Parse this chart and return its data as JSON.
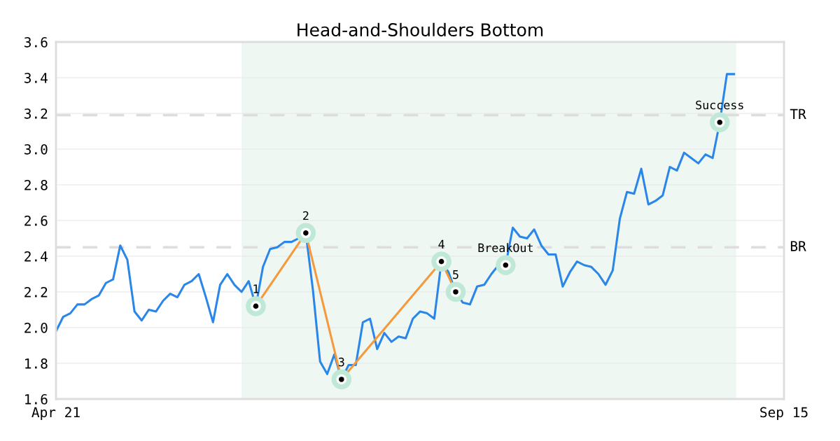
{
  "chart_data": {
    "type": "line",
    "title": "Head-and-Shoulders Bottom",
    "categories": [
      "Apr 21",
      null,
      null,
      null,
      null,
      null,
      null,
      null,
      null,
      null,
      null,
      null,
      null,
      null,
      null,
      null,
      null,
      null,
      null,
      null,
      null,
      null,
      null,
      null,
      null,
      null,
      null,
      null,
      null,
      null,
      null,
      null,
      null,
      null,
      null,
      null,
      null,
      null,
      null,
      null,
      null,
      null,
      null,
      null,
      null,
      null,
      null,
      null,
      null,
      null,
      null,
      null,
      null,
      null,
      null,
      null,
      null,
      null,
      null,
      null,
      null,
      null,
      null,
      null,
      null,
      null,
      null,
      null,
      null,
      null,
      null,
      null,
      null,
      null,
      null,
      null,
      null,
      null,
      null,
      null,
      null,
      null,
      null,
      null,
      null,
      null,
      null,
      null,
      null,
      null,
      null,
      null,
      null,
      null,
      null,
      null,
      null,
      null,
      null,
      null,
      null,
      null,
      "Sep 15"
    ],
    "series": [
      {
        "color": "#2a86e8",
        "values": [
          1.98,
          2.06,
          2.08,
          2.13,
          2.13,
          2.16,
          2.18,
          2.25,
          2.27,
          2.46,
          2.38,
          2.09,
          2.04,
          2.1,
          2.09,
          2.15,
          2.19,
          2.17,
          2.24,
          2.26,
          2.3,
          2.17,
          2.03,
          2.24,
          2.3,
          2.24,
          2.2,
          2.26,
          2.12,
          2.34,
          2.44,
          2.45,
          2.48,
          2.48,
          2.5,
          2.53,
          2.21,
          1.81,
          1.74,
          1.85,
          1.71,
          1.79,
          1.79,
          2.03,
          2.05,
          1.88,
          1.97,
          1.92,
          1.95,
          1.94,
          2.05,
          2.09,
          2.08,
          2.05,
          2.37,
          2.31,
          2.2,
          2.14,
          2.13,
          2.23,
          2.24,
          2.3,
          2.35,
          2.35,
          2.56,
          2.51,
          2.5,
          2.55,
          2.46,
          2.41,
          2.41,
          2.23,
          2.31,
          2.37,
          2.35,
          2.34,
          2.3,
          2.24,
          2.32,
          2.61,
          2.76,
          2.75,
          2.89,
          2.69,
          2.71,
          2.74,
          2.9,
          2.88,
          2.98,
          2.95,
          2.92,
          2.97,
          2.95,
          3.15,
          3.42,
          3.42,
          null,
          null,
          null,
          null,
          null,
          null,
          null
        ]
      },
      {
        "type": "line",
        "color": "#f5993d",
        "marker": "circle",
        "values": [
          null,
          null,
          null,
          null,
          null,
          null,
          null,
          null,
          null,
          null,
          null,
          null,
          null,
          null,
          null,
          null,
          null,
          null,
          null,
          null,
          null,
          null,
          null,
          null,
          null,
          null,
          null,
          null,
          2.12,
          null,
          null,
          null,
          null,
          null,
          null,
          2.53,
          null,
          null,
          null,
          null,
          1.71,
          null,
          null,
          null,
          null,
          null,
          null,
          null,
          null,
          null,
          null,
          null,
          null,
          null,
          2.37,
          null,
          2.2,
          null,
          null,
          null,
          null,
          null,
          null,
          null,
          null,
          null,
          null,
          null,
          null,
          null,
          null,
          null,
          null,
          null,
          null,
          null,
          null,
          null,
          null,
          null,
          null,
          null,
          null,
          null,
          null,
          null,
          null,
          null,
          null,
          null,
          null,
          null,
          null,
          null,
          null,
          null,
          null,
          null,
          null,
          null,
          null,
          null,
          null
        ]
      },
      {
        "type": "scatter",
        "name": "1",
        "color": "#000000",
        "values": [
          null,
          null,
          null,
          null,
          null,
          null,
          null,
          null,
          null,
          null,
          null,
          null,
          null,
          null,
          null,
          null,
          null,
          null,
          null,
          null,
          null,
          null,
          null,
          null,
          null,
          null,
          null,
          null,
          2.12,
          null,
          null,
          null,
          null,
          null,
          null,
          null,
          null,
          null,
          null,
          null,
          null,
          null,
          null,
          null,
          null,
          null,
          null,
          null,
          null,
          null,
          null,
          null,
          null,
          null,
          null,
          null,
          null,
          null,
          null,
          null,
          null,
          null,
          null,
          null,
          null,
          null,
          null,
          null,
          null,
          null,
          null,
          null,
          null,
          null,
          null,
          null,
          null,
          null,
          null,
          null,
          null,
          null,
          null,
          null,
          null,
          null,
          null,
          null,
          null,
          null,
          null,
          null,
          null,
          null,
          null,
          null,
          null,
          null,
          null,
          null,
          null,
          null,
          null
        ]
      },
      {
        "type": "scatter",
        "name": "2",
        "color": "#000000",
        "values": [
          null,
          null,
          null,
          null,
          null,
          null,
          null,
          null,
          null,
          null,
          null,
          null,
          null,
          null,
          null,
          null,
          null,
          null,
          null,
          null,
          null,
          null,
          null,
          null,
          null,
          null,
          null,
          null,
          null,
          null,
          null,
          null,
          null,
          null,
          null,
          2.53,
          null,
          null,
          null,
          null,
          null,
          null,
          null,
          null,
          null,
          null,
          null,
          null,
          null,
          null,
          null,
          null,
          null,
          null,
          null,
          null,
          null,
          null,
          null,
          null,
          null,
          null,
          null,
          null,
          null,
          null,
          null,
          null,
          null,
          null,
          null,
          null,
          null,
          null,
          null,
          null,
          null,
          null,
          null,
          null,
          null,
          null,
          null,
          null,
          null,
          null,
          null,
          null,
          null,
          null,
          null,
          null,
          null,
          null,
          null,
          null,
          null,
          null,
          null,
          null,
          null,
          null,
          null
        ]
      },
      {
        "type": "scatter",
        "name": "3",
        "color": "#000000",
        "values": [
          null,
          null,
          null,
          null,
          null,
          null,
          null,
          null,
          null,
          null,
          null,
          null,
          null,
          null,
          null,
          null,
          null,
          null,
          null,
          null,
          null,
          null,
          null,
          null,
          null,
          null,
          null,
          null,
          null,
          null,
          null,
          null,
          null,
          null,
          null,
          null,
          null,
          null,
          null,
          null,
          1.71,
          null,
          null,
          null,
          null,
          null,
          null,
          null,
          null,
          null,
          null,
          null,
          null,
          null,
          null,
          null,
          null,
          null,
          null,
          null,
          null,
          null,
          null,
          null,
          null,
          null,
          null,
          null,
          null,
          null,
          null,
          null,
          null,
          null,
          null,
          null,
          null,
          null,
          null,
          null,
          null,
          null,
          null,
          null,
          null,
          null,
          null,
          null,
          null,
          null,
          null,
          null,
          null,
          null,
          null,
          null,
          null,
          null,
          null,
          null,
          null,
          null,
          null
        ]
      },
      {
        "type": "scatter",
        "name": "4",
        "color": "#000000",
        "values": [
          null,
          null,
          null,
          null,
          null,
          null,
          null,
          null,
          null,
          null,
          null,
          null,
          null,
          null,
          null,
          null,
          null,
          null,
          null,
          null,
          null,
          null,
          null,
          null,
          null,
          null,
          null,
          null,
          null,
          null,
          null,
          null,
          null,
          null,
          null,
          null,
          null,
          null,
          null,
          null,
          null,
          null,
          null,
          null,
          null,
          null,
          null,
          null,
          null,
          null,
          null,
          null,
          null,
          null,
          2.37,
          null,
          null,
          null,
          null,
          null,
          null,
          null,
          null,
          null,
          null,
          null,
          null,
          null,
          null,
          null,
          null,
          null,
          null,
          null,
          null,
          null,
          null,
          null,
          null,
          null,
          null,
          null,
          null,
          null,
          null,
          null,
          null,
          null,
          null,
          null,
          null,
          null,
          null,
          null,
          null,
          null,
          null,
          null,
          null,
          null,
          null,
          null,
          null
        ]
      },
      {
        "type": "scatter",
        "name": "5",
        "color": "#000000",
        "values": [
          null,
          null,
          null,
          null,
          null,
          null,
          null,
          null,
          null,
          null,
          null,
          null,
          null,
          null,
          null,
          null,
          null,
          null,
          null,
          null,
          null,
          null,
          null,
          null,
          null,
          null,
          null,
          null,
          null,
          null,
          null,
          null,
          null,
          null,
          null,
          null,
          null,
          null,
          null,
          null,
          null,
          null,
          null,
          null,
          null,
          null,
          null,
          null,
          null,
          null,
          null,
          null,
          null,
          null,
          null,
          null,
          2.2,
          null,
          null,
          null,
          null,
          null,
          null,
          null,
          null,
          null,
          null,
          null,
          null,
          null,
          null,
          null,
          null,
          null,
          null,
          null,
          null,
          null,
          null,
          null,
          null,
          null,
          null,
          null,
          null,
          null,
          null,
          null,
          null,
          null,
          null,
          null,
          null,
          null,
          null,
          null,
          null,
          null,
          null,
          null,
          null,
          null,
          null
        ]
      },
      {
        "type": "scatter",
        "name": "BreakOut",
        "color": "#000000",
        "values": [
          null,
          null,
          null,
          null,
          null,
          null,
          null,
          null,
          null,
          null,
          null,
          null,
          null,
          null,
          null,
          null,
          null,
          null,
          null,
          null,
          null,
          null,
          null,
          null,
          null,
          null,
          null,
          null,
          null,
          null,
          null,
          null,
          null,
          null,
          null,
          null,
          null,
          null,
          null,
          null,
          null,
          null,
          null,
          null,
          null,
          null,
          null,
          null,
          null,
          null,
          null,
          null,
          null,
          null,
          null,
          null,
          null,
          null,
          null,
          null,
          null,
          null,
          null,
          2.35,
          null,
          null,
          null,
          null,
          null,
          null,
          null,
          null,
          null,
          null,
          null,
          null,
          null,
          null,
          null,
          null,
          null,
          null,
          null,
          null,
          null,
          null,
          null,
          null,
          null,
          null,
          null,
          null,
          null,
          null,
          null,
          null,
          null,
          null,
          null,
          null,
          null,
          null,
          null
        ]
      },
      {
        "type": "scatter",
        "name": "Success",
        "color": "#000000",
        "values": [
          null,
          null,
          null,
          null,
          null,
          null,
          null,
          null,
          null,
          null,
          null,
          null,
          null,
          null,
          null,
          null,
          null,
          null,
          null,
          null,
          null,
          null,
          null,
          null,
          null,
          null,
          null,
          null,
          null,
          null,
          null,
          null,
          null,
          null,
          null,
          null,
          null,
          null,
          null,
          null,
          null,
          null,
          null,
          null,
          null,
          null,
          null,
          null,
          null,
          null,
          null,
          null,
          null,
          null,
          null,
          null,
          null,
          null,
          null,
          null,
          null,
          null,
          null,
          null,
          null,
          null,
          null,
          null,
          null,
          null,
          null,
          null,
          null,
          null,
          null,
          null,
          null,
          null,
          null,
          null,
          null,
          null,
          null,
          null,
          null,
          null,
          null,
          null,
          null,
          null,
          null,
          null,
          null,
          3.15,
          null,
          null,
          null,
          null,
          null,
          null,
          null,
          null,
          null
        ]
      }
    ],
    "ylim": [
      1.6,
      3.6
    ],
    "yticks": [
      1.6,
      1.8,
      {
        "value": 2.0,
        "label": "2.0"
      },
      2.2,
      2.4,
      2.6,
      2.8,
      {
        "value": 3.0,
        "label": "3.0"
      },
      3.2,
      3.4,
      3.6
    ],
    "grid": "y",
    "ref_lines": [
      {
        "axis": "y",
        "value": 3.19,
        "label": "TR",
        "color": "#dddddd",
        "line_style": "dashed"
      },
      {
        "axis": "y",
        "value": 2.45,
        "label": "BR",
        "color": "#dddddd",
        "line_style": "dashed"
      }
    ]
  }
}
